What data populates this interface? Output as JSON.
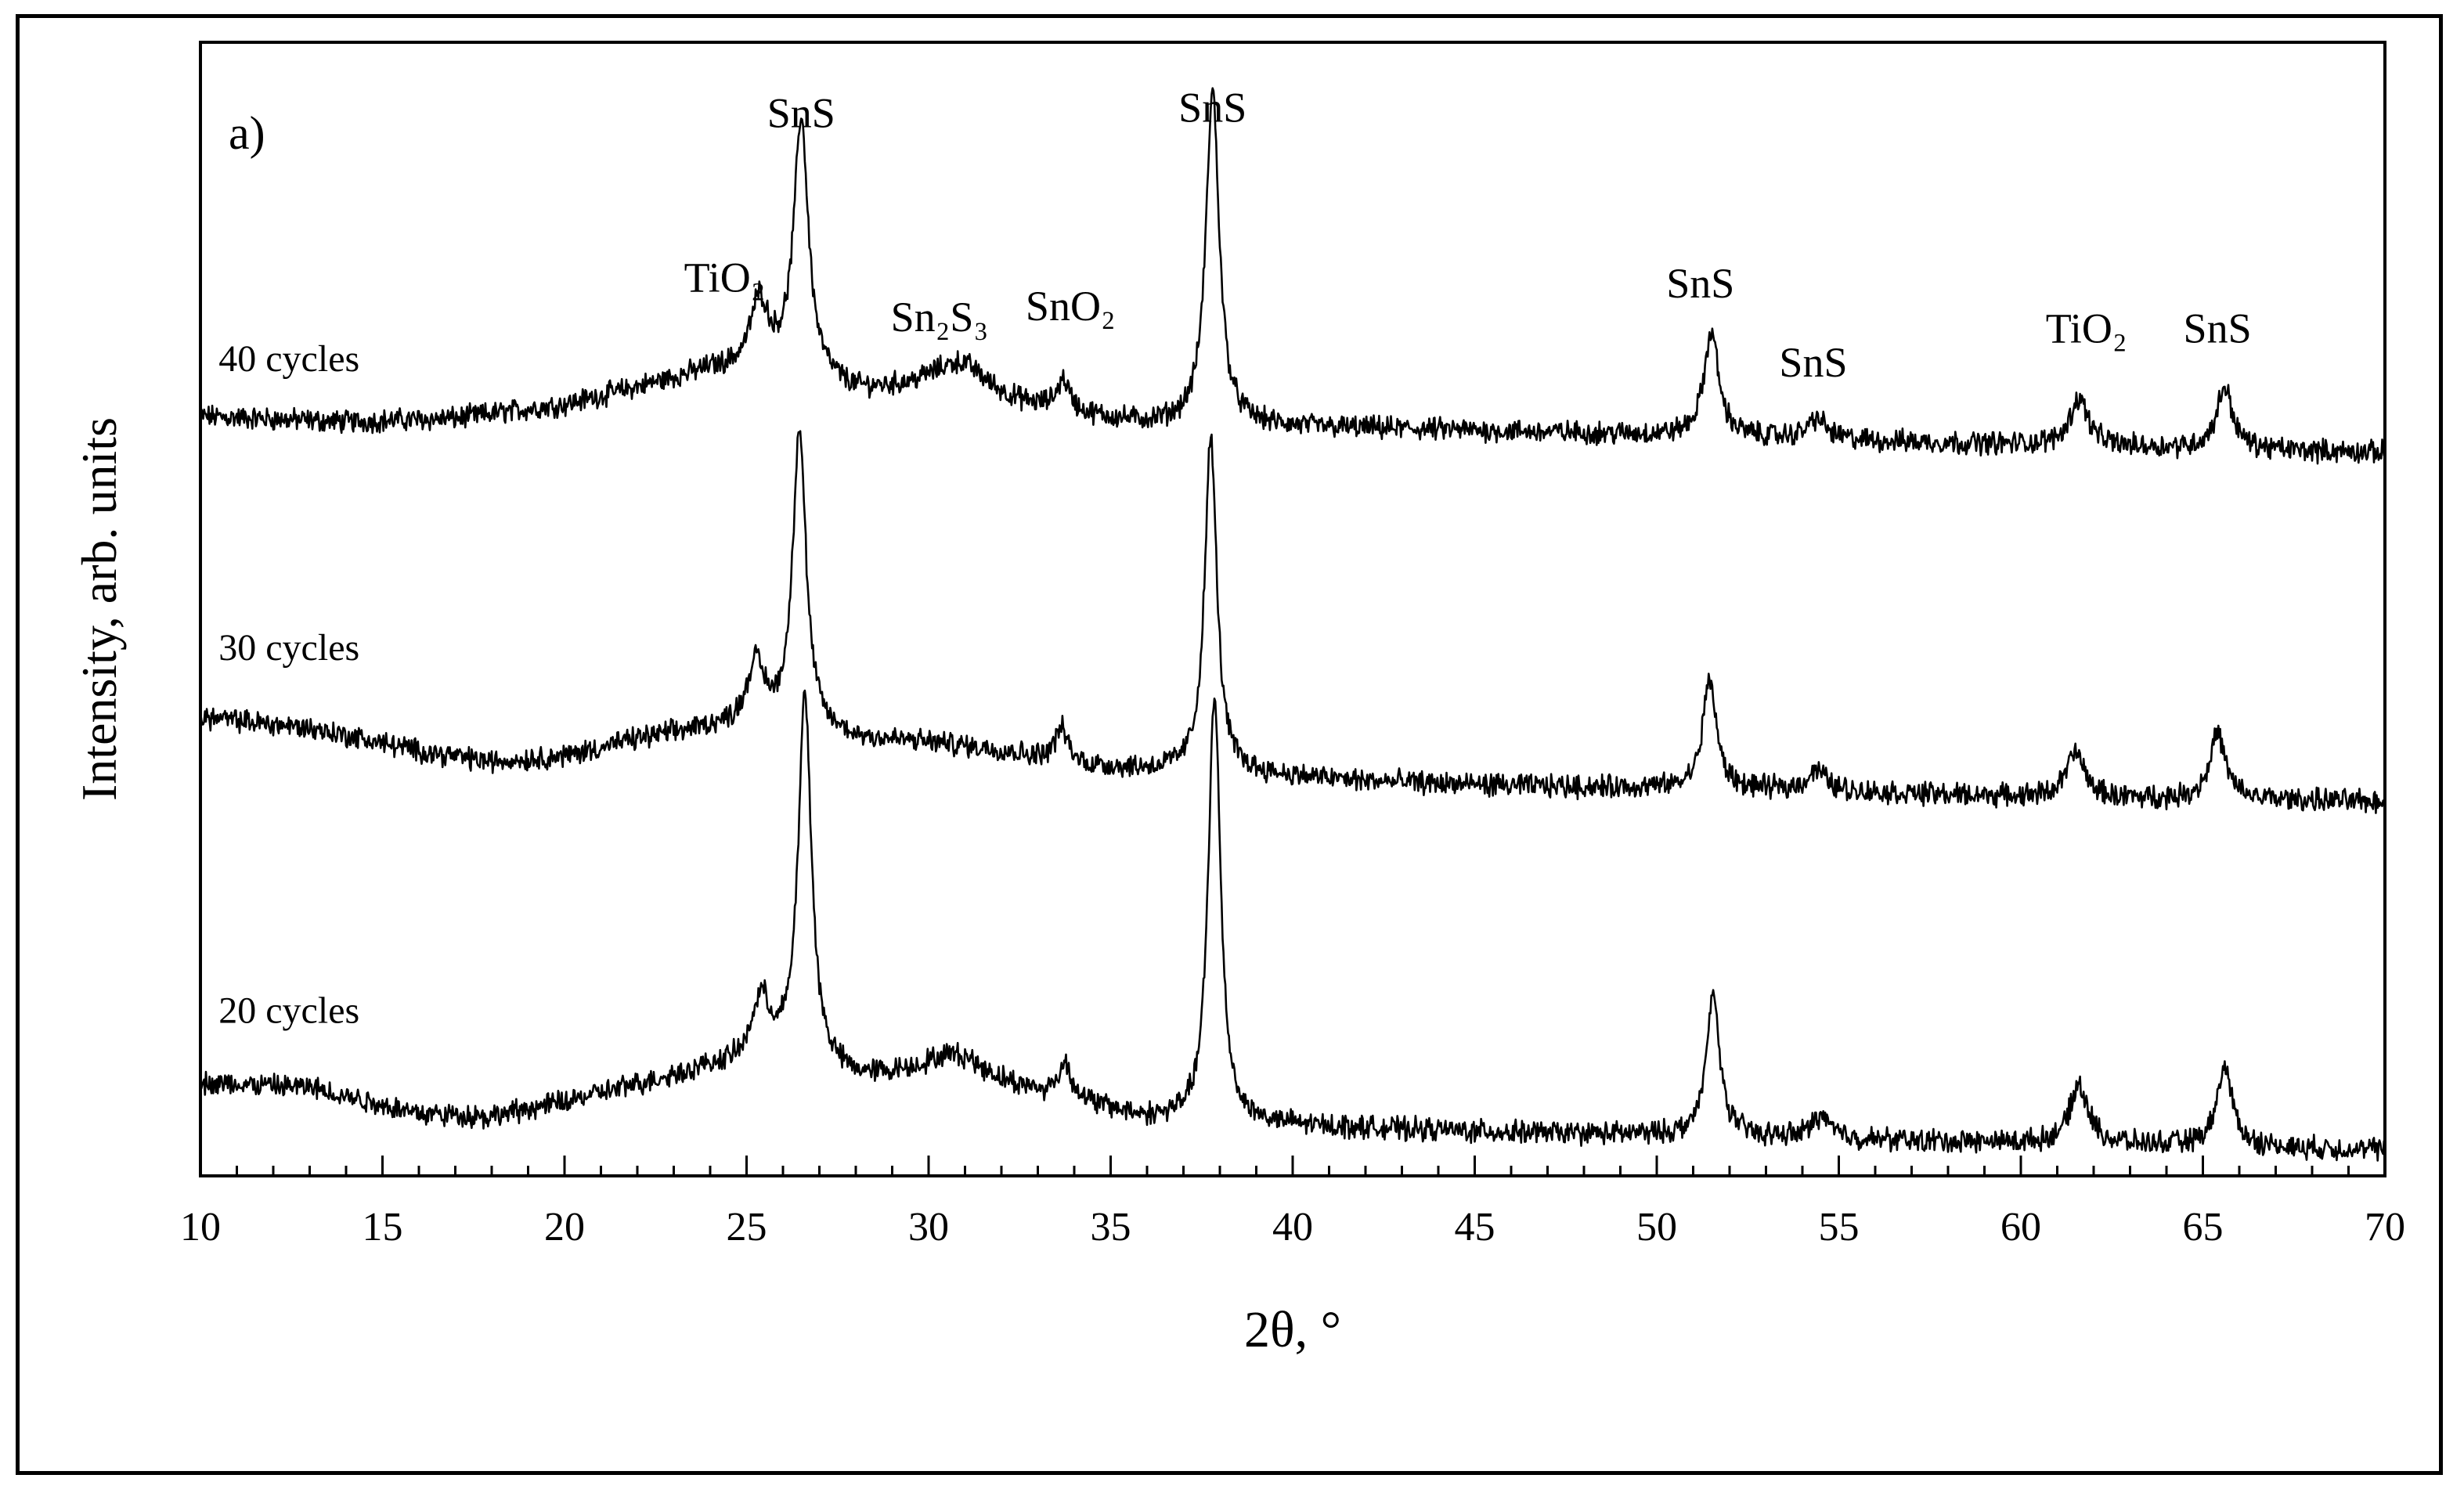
{
  "chart_data": {
    "type": "line",
    "panel_label": "a)",
    "xlabel": "2θ, °",
    "ylabel": "Intensity, arb. units",
    "xlim": [
      10,
      70
    ],
    "x_major_ticks": [
      10,
      15,
      20,
      25,
      30,
      35,
      40,
      45,
      50,
      55,
      60,
      65,
      70
    ],
    "x_tick_labels": [
      "10",
      "15",
      "20",
      "25",
      "30",
      "35",
      "40",
      "45",
      "50",
      "55",
      "60",
      "65",
      "70"
    ],
    "x_minor_step": 1,
    "ylim": [
      0,
      100
    ],
    "grid": false,
    "series": [
      {
        "name": "40 cycles",
        "label": "40 cycles",
        "label_position": [
          10.5,
          71
        ],
        "baseline": [
          [
            10,
            67
          ],
          [
            14,
            66.5
          ],
          [
            17,
            66.8
          ],
          [
            20,
            68
          ],
          [
            22,
            69.5
          ],
          [
            24,
            71
          ],
          [
            26,
            71
          ],
          [
            28,
            69
          ],
          [
            30,
            69.2
          ],
          [
            32,
            68
          ],
          [
            34,
            67
          ],
          [
            36,
            66.3
          ],
          [
            38,
            66.2
          ],
          [
            40,
            66
          ],
          [
            44,
            65.8
          ],
          [
            48,
            65.5
          ],
          [
            52,
            65.2
          ],
          [
            56,
            64.8
          ],
          [
            60,
            64.5
          ],
          [
            64,
            64.2
          ],
          [
            67,
            64.0
          ],
          [
            70,
            63.8
          ]
        ],
        "peaks": [
          {
            "pos": 25.35,
            "h": 6.0,
            "w": 0.3
          },
          {
            "pos": 26.5,
            "h": 22.5,
            "w": 0.24
          },
          {
            "pos": 30.9,
            "h": 3.0,
            "w": 0.9
          },
          {
            "pos": 33.7,
            "h": 2.8,
            "w": 0.22
          },
          {
            "pos": 37.8,
            "h": 29.5,
            "w": 0.22
          },
          {
            "pos": 51.5,
            "h": 9.2,
            "w": 0.24
          },
          {
            "pos": 54.4,
            "h": 1.8,
            "w": 0.3
          },
          {
            "pos": 61.6,
            "h": 4.2,
            "w": 0.3
          },
          {
            "pos": 65.6,
            "h": 5.5,
            "w": 0.26
          }
        ]
      },
      {
        "name": "30 cycles",
        "label": "30 cycles",
        "label_position": [
          10.5,
          45.5
        ],
        "baseline": [
          [
            10,
            40.5
          ],
          [
            13,
            39.5
          ],
          [
            16,
            37.5
          ],
          [
            18,
            36.5
          ],
          [
            20,
            37
          ],
          [
            22,
            38.5
          ],
          [
            24,
            39.5
          ],
          [
            26,
            39.5
          ],
          [
            28,
            38.5
          ],
          [
            30,
            38.2
          ],
          [
            32,
            37.5
          ],
          [
            34,
            36.2
          ],
          [
            36,
            35.8
          ],
          [
            38,
            35.6
          ],
          [
            42,
            34.8
          ],
          [
            46,
            34.4
          ],
          [
            50,
            34.2
          ],
          [
            54,
            34
          ],
          [
            58,
            33.6
          ],
          [
            62,
            33.3
          ],
          [
            66,
            33.2
          ],
          [
            70,
            33
          ]
        ],
        "peaks": [
          {
            "pos": 25.25,
            "h": 5.5,
            "w": 0.3
          },
          {
            "pos": 26.45,
            "h": 26.5,
            "w": 0.22
          },
          {
            "pos": 33.65,
            "h": 3.0,
            "w": 0.22
          },
          {
            "pos": 37.75,
            "h": 29.5,
            "w": 0.2
          },
          {
            "pos": 51.45,
            "h": 9.8,
            "w": 0.22
          },
          {
            "pos": 54.4,
            "h": 1.8,
            "w": 0.3
          },
          {
            "pos": 61.5,
            "h": 4.0,
            "w": 0.3
          },
          {
            "pos": 65.4,
            "h": 5.8,
            "w": 0.26
          }
        ]
      },
      {
        "name": "20 cycles",
        "label": "20 cycles",
        "label_position": [
          10.5,
          13.5
        ],
        "baseline": [
          [
            10,
            8.2
          ],
          [
            13,
            7.8
          ],
          [
            16,
            5.5
          ],
          [
            18,
            5.2
          ],
          [
            20,
            6.5
          ],
          [
            22,
            8
          ],
          [
            24,
            9.5
          ],
          [
            26,
            10
          ],
          [
            28,
            8.5
          ],
          [
            30,
            8.8
          ],
          [
            32,
            7.8
          ],
          [
            34,
            6.5
          ],
          [
            36,
            5
          ],
          [
            38,
            4.6
          ],
          [
            42,
            4.2
          ],
          [
            46,
            3.8
          ],
          [
            50,
            3.6
          ],
          [
            54,
            3.3
          ],
          [
            58,
            3.0
          ],
          [
            62,
            2.8
          ],
          [
            66,
            2.5
          ],
          [
            70,
            2.3
          ]
        ],
        "peaks": [
          {
            "pos": 25.4,
            "h": 5.5,
            "w": 0.3
          },
          {
            "pos": 26.6,
            "h": 32.5,
            "w": 0.22
          },
          {
            "pos": 30.8,
            "h": 2.2,
            "w": 0.9
          },
          {
            "pos": 33.75,
            "h": 3.0,
            "w": 0.22
          },
          {
            "pos": 37.85,
            "h": 38.0,
            "w": 0.2
          },
          {
            "pos": 51.55,
            "h": 12.5,
            "w": 0.22
          },
          {
            "pos": 54.5,
            "h": 2.0,
            "w": 0.3
          },
          {
            "pos": 61.6,
            "h": 5.2,
            "w": 0.3
          },
          {
            "pos": 65.6,
            "h": 7.0,
            "w": 0.26
          }
        ]
      }
    ],
    "annotations": [
      {
        "text": "SnS",
        "x": 26.5,
        "y": 92.5
      },
      {
        "text": "TiO₂",
        "x": 24.4,
        "y": 78
      },
      {
        "text": "Sn₂S₃",
        "x": 30.3,
        "y": 74.5
      },
      {
        "text": "SnO₂",
        "x": 33.9,
        "y": 75.5
      },
      {
        "text": "SnS",
        "x": 37.8,
        "y": 93
      },
      {
        "text": "SnS",
        "x": 51.2,
        "y": 77.5
      },
      {
        "text": "SnS",
        "x": 54.3,
        "y": 70.5
      },
      {
        "text": "TiO₂",
        "x": 61.8,
        "y": 73.5
      },
      {
        "text": "SnS",
        "x": 65.4,
        "y": 73.5
      }
    ]
  }
}
